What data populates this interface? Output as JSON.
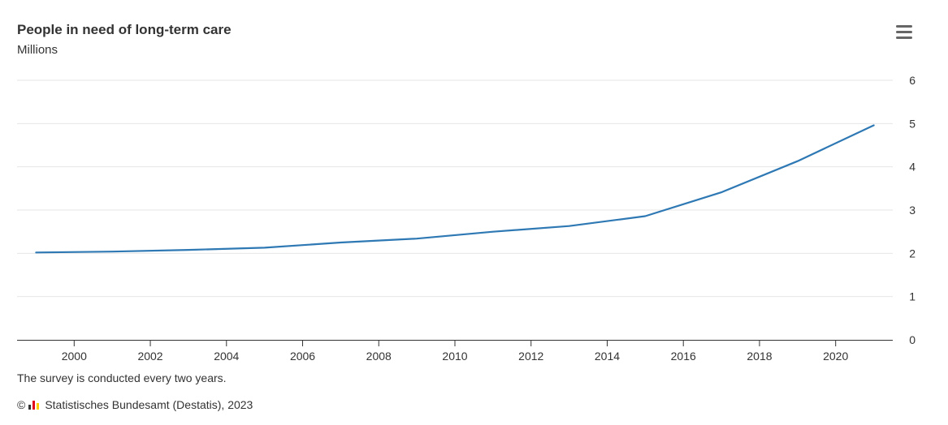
{
  "header": {
    "title": "People in need of long-term care",
    "subtitle": "Millions",
    "menu_icon": "hamburger-menu-icon"
  },
  "footer": {
    "note": "The survey is conducted every two years.",
    "copyright_symbol": "©",
    "credits": "Statistisches Bundesamt (Destatis), 2023",
    "logo_icon": "destatis-logo-icon",
    "logo_colors": [
      "#333333",
      "#e3001b",
      "#ffcc00"
    ]
  },
  "chart_data": {
    "type": "line",
    "title": "People in need of long-term care",
    "subtitle": "Millions",
    "xlabel": "",
    "ylabel": "",
    "x_ticks": [
      2000,
      2002,
      2004,
      2006,
      2008,
      2010,
      2012,
      2014,
      2016,
      2018,
      2020
    ],
    "x_tick_labels": [
      "2000",
      "2002",
      "2004",
      "2006",
      "2008",
      "2010",
      "2012",
      "2014",
      "2016",
      "2018",
      "2020"
    ],
    "y_ticks": [
      0,
      1,
      2,
      3,
      4,
      5,
      6
    ],
    "y_tick_labels": [
      "0",
      "1",
      "2",
      "3",
      "4",
      "5",
      "6"
    ],
    "xlim": [
      1998.5,
      2021.5
    ],
    "ylim": [
      0,
      6
    ],
    "y_axis_side": "right",
    "grid": true,
    "legend": "none",
    "series": [
      {
        "color": "#2e78b4",
        "points": [
          {
            "x": 1999,
            "y": 2.02
          },
          {
            "x": 2001,
            "y": 2.04
          },
          {
            "x": 2003,
            "y": 2.08
          },
          {
            "x": 2005,
            "y": 2.13
          },
          {
            "x": 2007,
            "y": 2.25
          },
          {
            "x": 2009,
            "y": 2.34
          },
          {
            "x": 2011,
            "y": 2.5
          },
          {
            "x": 2013,
            "y": 2.63
          },
          {
            "x": 2015,
            "y": 2.86
          },
          {
            "x": 2017,
            "y": 3.41
          },
          {
            "x": 2019,
            "y": 4.13
          },
          {
            "x": 2021,
            "y": 4.96
          }
        ]
      }
    ]
  }
}
